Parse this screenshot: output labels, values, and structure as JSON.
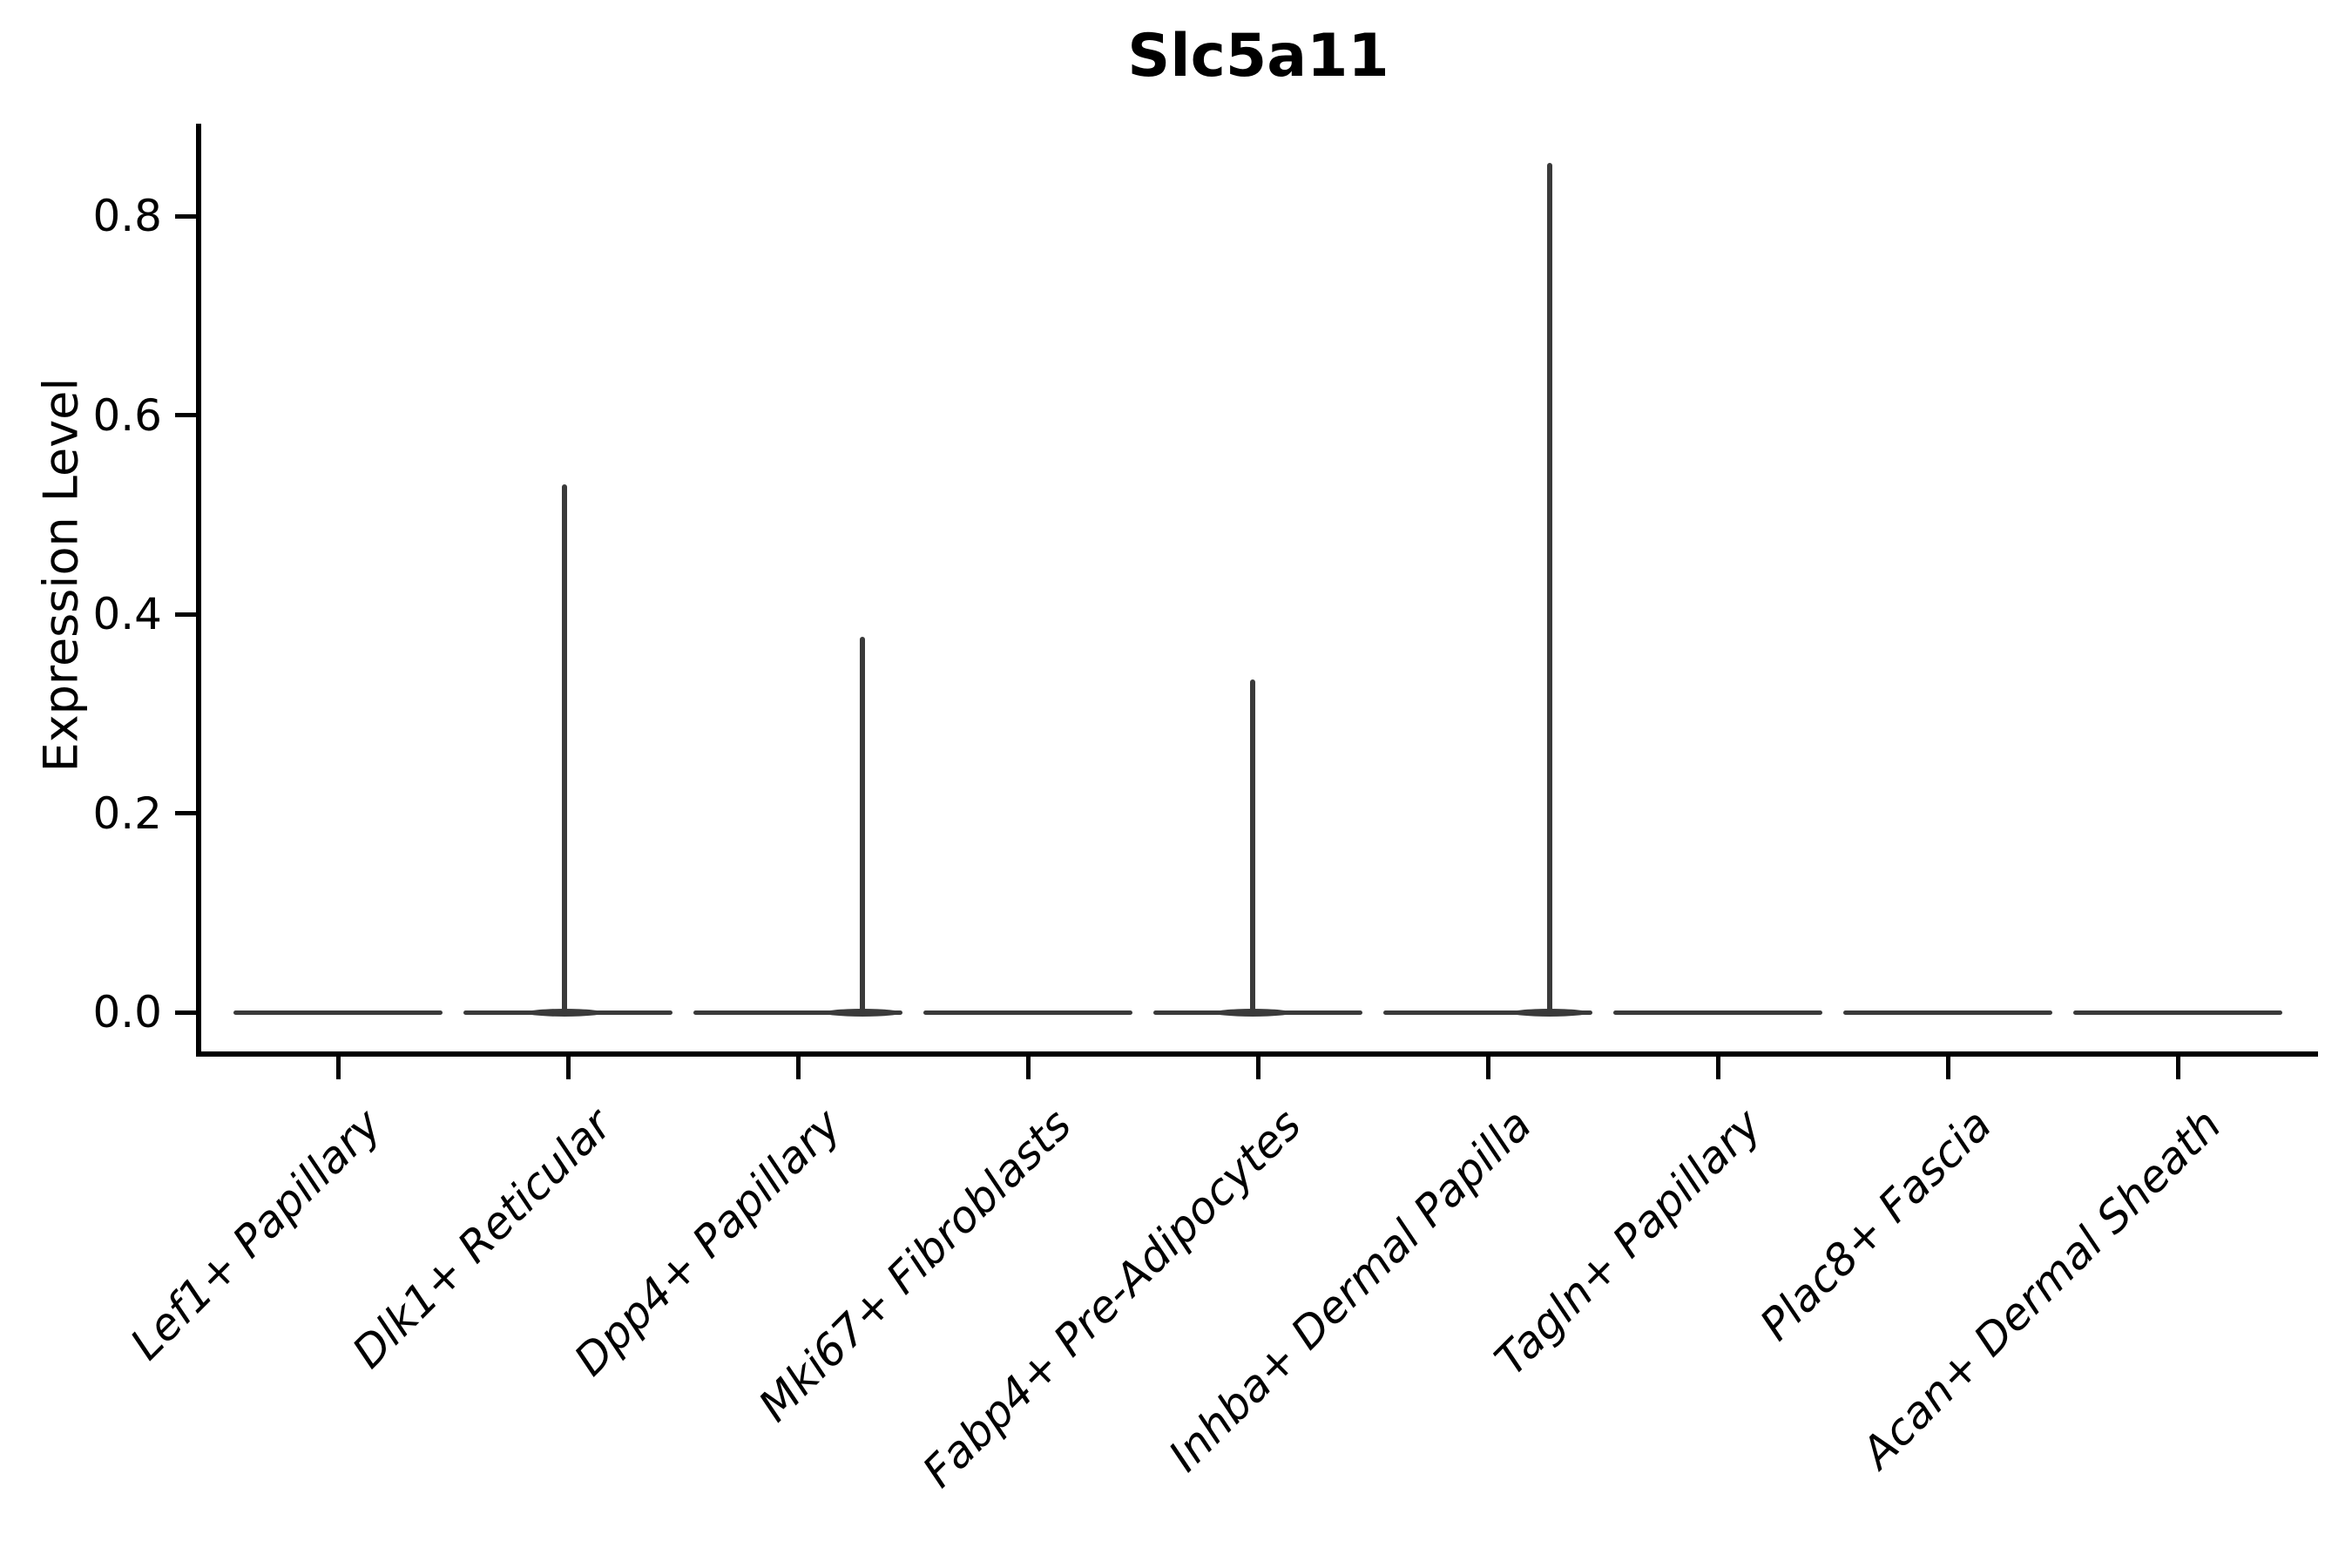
{
  "title": "Slc5a11",
  "ylabel": "Expression Level",
  "colors": {
    "violin": "#3a3a3a",
    "axis": "#000000",
    "text": "#000000",
    "background": "#ffffff"
  },
  "chart_data": {
    "type": "violin",
    "title": "Slc5a11",
    "xlabel": "",
    "ylabel": "Expression Level",
    "ylim": [
      -0.04,
      0.89
    ],
    "yticks": [
      0.0,
      0.2,
      0.4,
      0.6,
      0.8
    ],
    "ytick_labels": [
      "0.0",
      "0.2",
      "0.4",
      "0.6",
      "0.8"
    ],
    "grid": false,
    "legend": "none",
    "violin_width_frac": 0.91,
    "categories": [
      "Lef1+ Papillary",
      "Dlk1+ Reticular",
      "Dpp4+ Papillary",
      "Mki67+ Fibroblasts",
      "Fabp4+ Pre-Adipocytes",
      "Inhba+ Dermal Papilla",
      "Tagln+ Papillary",
      "Plac8+ Fascia",
      "Acan+ Dermal Sheath"
    ],
    "series": [
      {
        "name": "Lef1+ Papillary",
        "baseline": 0.0,
        "max_expression": 0.0,
        "spike": null,
        "spike_offset_frac": 0
      },
      {
        "name": "Dlk1+ Reticular",
        "baseline": 0.0,
        "max_expression": 0.53,
        "spike": 0.53,
        "spike_offset_frac": -0.015
      },
      {
        "name": "Dpp4+ Papillary",
        "baseline": 0.0,
        "max_expression": 0.38,
        "spike": 0.377,
        "spike_offset_frac": 0.28
      },
      {
        "name": "Mki67+ Fibroblasts",
        "baseline": 0.0,
        "max_expression": 0.0,
        "spike": null,
        "spike_offset_frac": 0
      },
      {
        "name": "Fabp4+ Pre-Adipocytes",
        "baseline": 0.0,
        "max_expression": 0.33,
        "spike": 0.334,
        "spike_offset_frac": -0.023
      },
      {
        "name": "Inhba+ Dermal Papilla",
        "baseline": 0.0,
        "max_expression": 0.85,
        "spike": 0.853,
        "spike_offset_frac": 0.27
      },
      {
        "name": "Tagln+ Papillary",
        "baseline": 0.0,
        "max_expression": 0.0,
        "spike": null,
        "spike_offset_frac": 0
      },
      {
        "name": "Plac8+ Fascia",
        "baseline": 0.0,
        "max_expression": 0.0,
        "spike": null,
        "spike_offset_frac": 0
      },
      {
        "name": "Acan+ Dermal Sheath",
        "baseline": 0.0,
        "max_expression": 0.0,
        "spike": null,
        "spike_offset_frac": 0
      }
    ]
  }
}
